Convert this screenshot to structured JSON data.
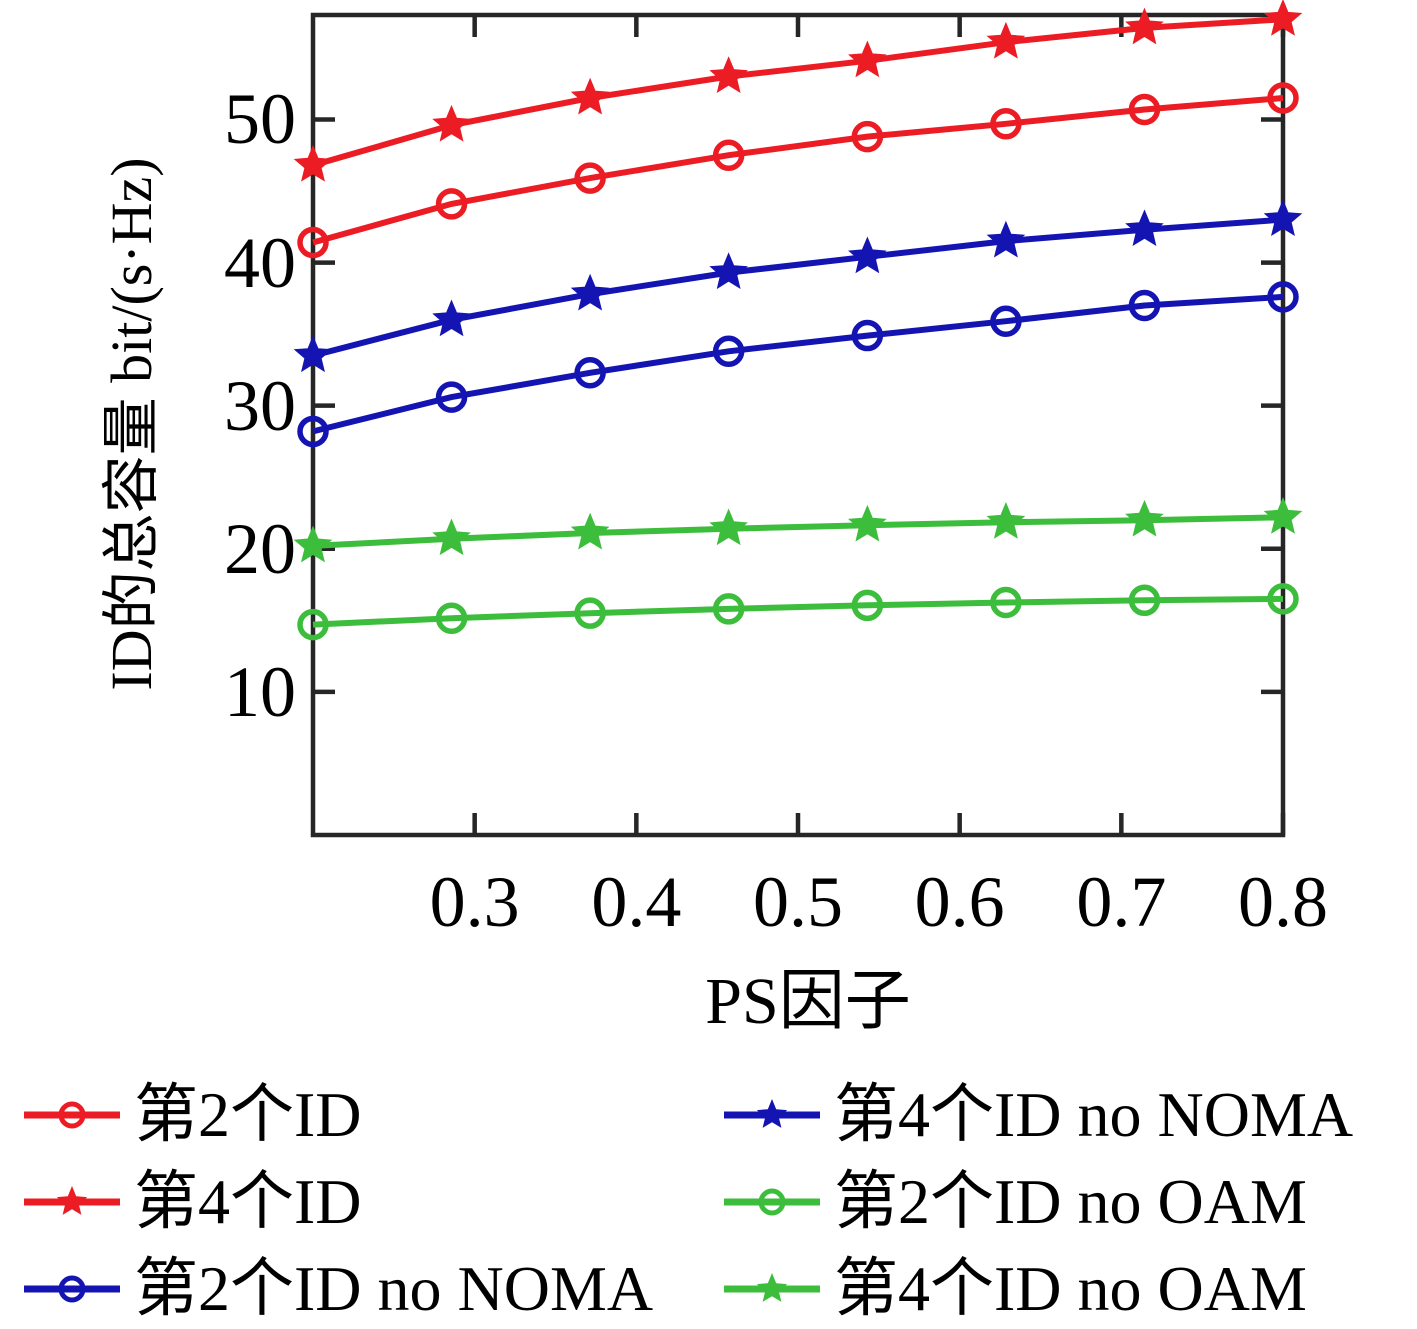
{
  "figure": {
    "xlabel": "PS因子",
    "ylabel": "ID的总容量 bit/(s·Hz)",
    "xtick_labels": [
      "0.3",
      "0.4",
      "0.5",
      "0.6",
      "0.7",
      "0.8"
    ],
    "ytick_labels": [
      "10",
      "20",
      "30",
      "40",
      "50"
    ],
    "axis_color": "#262626",
    "background": "#ffffff"
  },
  "chart_data": {
    "type": "line",
    "x": [
      0.2,
      0.2857,
      0.3714,
      0.4571,
      0.5429,
      0.6286,
      0.7143,
      0.8
    ],
    "series": [
      {
        "name": "第2个ID",
        "color": "#ec1c24",
        "marker": "circle",
        "values": [
          41.4,
          44.1,
          45.9,
          47.5,
          48.8,
          49.7,
          50.7,
          51.5
        ]
      },
      {
        "name": "第4个ID",
        "color": "#ec1c24",
        "marker": "star",
        "values": [
          46.8,
          49.6,
          51.5,
          53.0,
          54.1,
          55.4,
          56.4,
          57.0
        ]
      },
      {
        "name": "第2个ID no NOMA",
        "color": "#1414b2",
        "marker": "circle",
        "values": [
          28.2,
          30.6,
          32.3,
          33.8,
          34.9,
          35.9,
          37.0,
          37.6
        ]
      },
      {
        "name": "第4个ID no NOMA",
        "color": "#1414b2",
        "marker": "star",
        "values": [
          33.5,
          36.0,
          37.8,
          39.3,
          40.4,
          41.5,
          42.3,
          43.0
        ]
      },
      {
        "name": "第2个ID no OAM",
        "color": "#3cbd3c",
        "marker": "circle",
        "values": [
          14.7,
          15.15,
          15.5,
          15.8,
          16.05,
          16.25,
          16.4,
          16.5
        ]
      },
      {
        "name": "第4个ID no OAM",
        "color": "#3cbd3c",
        "marker": "star",
        "values": [
          20.2,
          20.7,
          21.1,
          21.4,
          21.65,
          21.85,
          22.0,
          22.2
        ]
      }
    ],
    "xlim": [
      0.2,
      0.8
    ],
    "ylim": [
      0,
      57.3
    ],
    "xticks": [
      0.3,
      0.4,
      0.5,
      0.6,
      0.7,
      0.8
    ],
    "yticks": [
      10,
      20,
      30,
      40,
      50
    ],
    "title": "",
    "xlabel": "PS因子",
    "ylabel": "ID的总容量 bit/(s·Hz)",
    "grid": false,
    "legend_position": "below-two-columns",
    "legend_order": [
      "第2个ID",
      "第4个ID",
      "第2个ID no NOMA",
      "第4个ID no NOMA",
      "第2个ID no OAM",
      "第4个ID no OAM"
    ]
  }
}
